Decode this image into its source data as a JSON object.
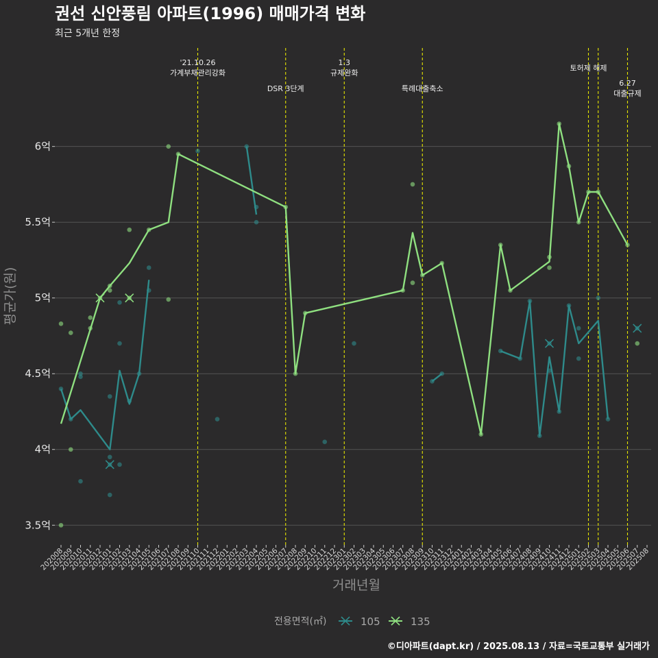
{
  "chart_data": {
    "type": "line",
    "title": "권선 신안풍림 아파트(1996) 매매가격 변화",
    "subtitle": "최근 5개년 한정",
    "xlabel": "거래년월",
    "ylabel": "평균가(원)",
    "caption": "©디아파트(dapt.kr) / 2025.08.13 / 자료=국토교통부 실거래가",
    "ylim": [
      3.37,
      6.65
    ],
    "y_ticks": [
      {
        "value": 3.5,
        "label": "3.5억"
      },
      {
        "value": 4.0,
        "label": "4억"
      },
      {
        "value": 4.5,
        "label": "4.5억"
      },
      {
        "value": 5.0,
        "label": "5억"
      },
      {
        "value": 5.5,
        "label": "5.5억"
      },
      {
        "value": 6.0,
        "label": "6억"
      }
    ],
    "x_months": [
      "202008",
      "202009",
      "202010",
      "202011",
      "202012",
      "202101",
      "202102",
      "202103",
      "202104",
      "202105",
      "202106",
      "202107",
      "202108",
      "202109",
      "202110",
      "202111",
      "202112",
      "202201",
      "202202",
      "202203",
      "202204",
      "202205",
      "202206",
      "202207",
      "202208",
      "202209",
      "202210",
      "202211",
      "202212",
      "202301",
      "202302",
      "202303",
      "202304",
      "202305",
      "202306",
      "202307",
      "202308",
      "202309",
      "202310",
      "202311",
      "202312",
      "202401",
      "202402",
      "202403",
      "202404",
      "202405",
      "202406",
      "202407",
      "202408",
      "202409",
      "202410",
      "202411",
      "202412",
      "202501",
      "202502",
      "202503",
      "202504",
      "202505",
      "202506",
      "202507",
      "202508"
    ],
    "grid": true,
    "legend": {
      "title": "전용면적(㎡)",
      "position": "bottom",
      "items": [
        {
          "label": "105",
          "color": "#2e8b8b"
        },
        {
          "label": "135",
          "color": "#8fe080"
        }
      ]
    },
    "series": [
      {
        "name": "105",
        "color": "#2e8b8b",
        "line": [
          [
            0,
            4.4
          ],
          [
            1,
            4.2
          ],
          [
            2,
            4.26
          ],
          [
            5,
            4.0
          ],
          [
            6,
            4.52
          ],
          [
            7,
            4.3
          ],
          [
            8,
            4.5
          ],
          [
            9,
            5.12
          ],
          null,
          [
            19,
            6.0
          ],
          [
            20,
            5.55
          ],
          null,
          [
            38,
            4.45
          ],
          [
            39,
            4.5
          ],
          null,
          [
            45,
            4.65
          ],
          [
            47,
            4.6
          ],
          [
            48,
            4.98
          ],
          [
            49,
            4.09
          ],
          [
            50,
            4.61
          ],
          [
            51,
            4.25
          ],
          [
            52,
            4.95
          ],
          [
            53,
            4.7
          ],
          [
            55,
            4.85
          ],
          [
            56,
            4.2
          ]
        ],
        "points": [
          [
            0,
            4.4
          ],
          [
            1,
            4.2
          ],
          [
            2,
            4.5
          ],
          [
            2,
            4.48
          ],
          [
            2,
            3.79
          ],
          [
            5,
            4.35
          ],
          [
            5,
            3.95
          ],
          [
            5,
            3.9
          ],
          [
            5,
            3.7
          ],
          [
            6,
            4.97
          ],
          [
            6,
            4.7
          ],
          [
            6,
            3.9
          ],
          [
            7,
            4.32
          ],
          [
            8,
            4.5
          ],
          [
            9,
            5.2
          ],
          [
            9,
            5.05
          ],
          [
            14,
            5.97
          ],
          [
            16,
            4.2
          ],
          [
            19,
            6.0
          ],
          [
            20,
            5.6
          ],
          [
            20,
            5.5
          ],
          [
            27,
            4.05
          ],
          [
            30,
            4.7
          ],
          [
            38,
            4.45
          ],
          [
            39,
            4.5
          ],
          [
            45,
            4.65
          ],
          [
            47,
            4.6
          ],
          [
            48,
            4.98
          ],
          [
            49,
            4.09
          ],
          [
            50,
            4.7
          ],
          [
            50,
            4.52
          ],
          [
            51,
            4.25
          ],
          [
            52,
            4.95
          ],
          [
            53,
            4.8
          ],
          [
            53,
            4.6
          ],
          [
            55,
            5.0
          ],
          [
            56,
            4.2
          ],
          [
            59,
            4.8
          ]
        ]
      },
      {
        "name": "135",
        "color": "#8fe080",
        "line": [
          [
            0,
            4.17
          ],
          [
            4,
            5.0
          ],
          [
            5,
            5.08
          ],
          [
            7,
            5.23
          ],
          [
            9,
            5.45
          ],
          [
            11,
            5.5
          ],
          [
            12,
            5.95
          ],
          [
            23,
            5.6
          ],
          [
            24,
            4.5
          ],
          [
            25,
            4.9
          ],
          [
            35,
            5.05
          ],
          [
            36,
            5.43
          ],
          [
            37,
            5.15
          ],
          [
            39,
            5.23
          ],
          [
            43,
            4.1
          ],
          [
            45,
            5.35
          ],
          [
            46,
            5.05
          ],
          [
            50,
            5.24
          ],
          [
            51,
            6.15
          ],
          [
            52,
            5.87
          ],
          [
            53,
            5.5
          ],
          [
            54,
            5.7
          ],
          [
            55,
            5.7
          ],
          [
            58,
            5.35
          ]
        ],
        "points": [
          [
            0,
            4.83
          ],
          [
            0,
            3.5
          ],
          [
            1,
            4.77
          ],
          [
            1,
            4.0
          ],
          [
            3,
            4.87
          ],
          [
            3,
            4.8
          ],
          [
            4,
            5.0
          ],
          [
            5,
            5.08
          ],
          [
            5,
            5.05
          ],
          [
            7,
            5.45
          ],
          [
            7,
            5.0
          ],
          [
            9,
            5.45
          ],
          [
            11,
            6.0
          ],
          [
            11,
            4.99
          ],
          [
            12,
            5.95
          ],
          [
            23,
            5.6
          ],
          [
            24,
            4.5
          ],
          [
            25,
            4.9
          ],
          [
            35,
            5.05
          ],
          [
            36,
            5.75
          ],
          [
            36,
            5.1
          ],
          [
            37,
            5.15
          ],
          [
            39,
            5.23
          ],
          [
            43,
            4.1
          ],
          [
            45,
            5.35
          ],
          [
            46,
            5.05
          ],
          [
            50,
            5.27
          ],
          [
            50,
            5.2
          ],
          [
            51,
            6.15
          ],
          [
            52,
            5.87
          ],
          [
            53,
            5.5
          ],
          [
            54,
            5.7
          ],
          [
            55,
            5.7
          ],
          [
            58,
            5.35
          ],
          [
            59,
            4.7
          ]
        ]
      }
    ],
    "cross_markers": [
      {
        "series": "135",
        "x": 4,
        "y": 5.0
      },
      {
        "series": "135",
        "x": 7,
        "y": 5.0
      },
      {
        "series": "105",
        "x": 5,
        "y": 3.9
      },
      {
        "series": "105",
        "x": 50,
        "y": 4.7
      },
      {
        "series": "105",
        "x": 59,
        "y": 4.8
      }
    ],
    "annotations": [
      {
        "x": 14,
        "lines": [
          "'21.10.26",
          "가계부채관리강화"
        ],
        "level": "high"
      },
      {
        "x": 23,
        "lines": [
          "DSR 3단계"
        ],
        "level": "low"
      },
      {
        "x": 29,
        "lines": [
          "1.3",
          "규제완화"
        ],
        "level": "high"
      },
      {
        "x": 37,
        "lines": [
          "특례대출축소"
        ],
        "level": "low"
      },
      {
        "x": 54,
        "lines": [
          "토허제 해제"
        ],
        "level": "mid"
      },
      {
        "x": 55,
        "lines": [],
        "level": "none"
      },
      {
        "x": 58,
        "lines": [
          "6.27",
          "대출규제"
        ],
        "level": "right"
      }
    ]
  }
}
